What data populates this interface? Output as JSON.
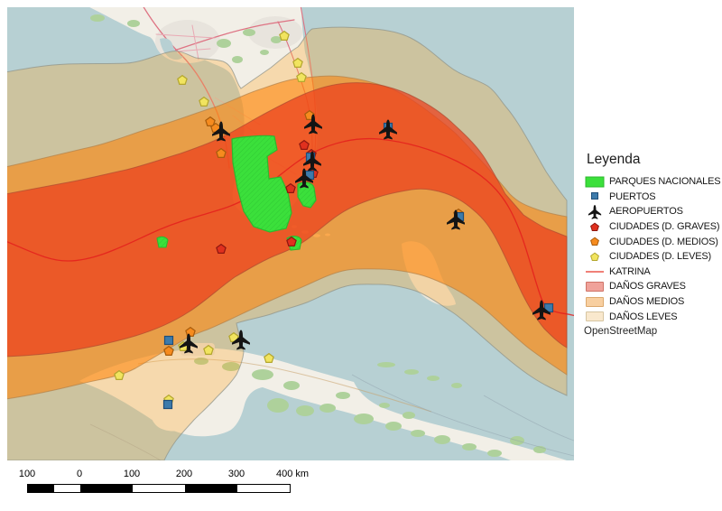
{
  "legend": {
    "title": "Leyenda",
    "items": [
      {
        "label": "PARQUES NACIONALES",
        "symbol": "green-area"
      },
      {
        "label": "PUERTOS",
        "symbol": "blue-square"
      },
      {
        "label": "AEROPUERTOS",
        "symbol": "airplane"
      },
      {
        "label": "CIUDADES (D. GRAVES)",
        "symbol": "red-pentagon"
      },
      {
        "label": "CIUDADES (D. MEDIOS)",
        "symbol": "orange-pentagon"
      },
      {
        "label": "CIUDADES (D. LEVES)",
        "symbol": "yellow-pentagon"
      },
      {
        "label": "KATRINA",
        "symbol": "red-line"
      },
      {
        "label": "DAÑOS GRAVES",
        "symbol": "red-patch"
      },
      {
        "label": "DAÑOS MEDIOS",
        "symbol": "orange-patch"
      },
      {
        "label": "DAÑOS LEVES",
        "symbol": "light-patch"
      }
    ],
    "attribution": "OpenStreetMap"
  },
  "scalebar": {
    "labels": [
      "100",
      "0",
      "100",
      "200",
      "300",
      "400"
    ],
    "unit": "km"
  },
  "map": {
    "markers": {
      "airports": [
        [
          237,
          137
        ],
        [
          339,
          129
        ],
        [
          422,
          135
        ],
        [
          338,
          170
        ],
        [
          329,
          189
        ],
        [
          497,
          235
        ],
        [
          592,
          335
        ],
        [
          201,
          372
        ],
        [
          259,
          368
        ]
      ],
      "ports": [
        [
          422,
          133
        ],
        [
          336,
          166
        ],
        [
          335,
          186
        ],
        [
          501,
          232
        ],
        [
          600,
          333
        ],
        [
          179,
          369
        ],
        [
          178,
          440
        ]
      ],
      "cities_graves": [
        [
          329,
          153
        ],
        [
          337,
          163
        ],
        [
          339,
          184
        ],
        [
          314,
          201
        ],
        [
          315,
          260
        ],
        [
          237,
          268
        ]
      ],
      "cities_medios": [
        [
          225,
          127
        ],
        [
          231,
          134
        ],
        [
          237,
          162
        ],
        [
          335,
          120
        ],
        [
          500,
          229
        ],
        [
          203,
          360
        ],
        [
          179,
          381
        ]
      ],
      "cities_leves": [
        [
          307,
          32
        ],
        [
          322,
          62
        ],
        [
          326,
          78
        ],
        [
          194,
          81
        ],
        [
          218,
          105
        ],
        [
          195,
          376
        ],
        [
          223,
          380
        ],
        [
          251,
          366
        ],
        [
          290,
          389
        ],
        [
          124,
          408
        ],
        [
          179,
          435
        ]
      ]
    }
  },
  "colors": {
    "sea": "#b7d0d3",
    "land": "#f2efe7",
    "urban": "#e8e4dd",
    "forest": "#aed19b",
    "shoal": "#ece7db",
    "zone_leves": "rgba(255,165,40,0.30)",
    "zone_medios": "rgba(255,127,0,0.55)",
    "zone_graves": "rgba(236,62,28,0.72)",
    "zone_leves_stroke": "#90948a",
    "zone_medios_stroke": "#b08048",
    "zone_graves_stroke": "#ad4a30",
    "track": "rgba(227,26,28,0.8)",
    "park_fill": "#3be03b",
    "park_hatch": "#27b42d",
    "park_stroke": "#2db82d",
    "port_fill": "#3d7bab",
    "port_stroke": "#1f4e79",
    "city_grave_fill": "#e0301e",
    "city_grave_stroke": "#8d1710",
    "city_medio_fill": "#f68b1e",
    "city_medio_stroke": "#a85c0c",
    "city_leve_fill": "#f1e45f",
    "city_leve_stroke": "#b3a62e",
    "plane": "#141414",
    "road_major": "#de7383",
    "road_minor": "#e9a9b4",
    "cuba_road": "#c9a06a",
    "searoute": "#8fa0ac",
    "legend_graves_patch": "#f0a29a",
    "legend_graves_border": "#cf7468",
    "legend_medios_patch": "#f8cfa0",
    "legend_medios_border": "#dca96e",
    "legend_leves_patch": "#f9e8cd",
    "legend_leves_border": "#d6c5a2",
    "katrina_legend_line": "#f08078"
  }
}
